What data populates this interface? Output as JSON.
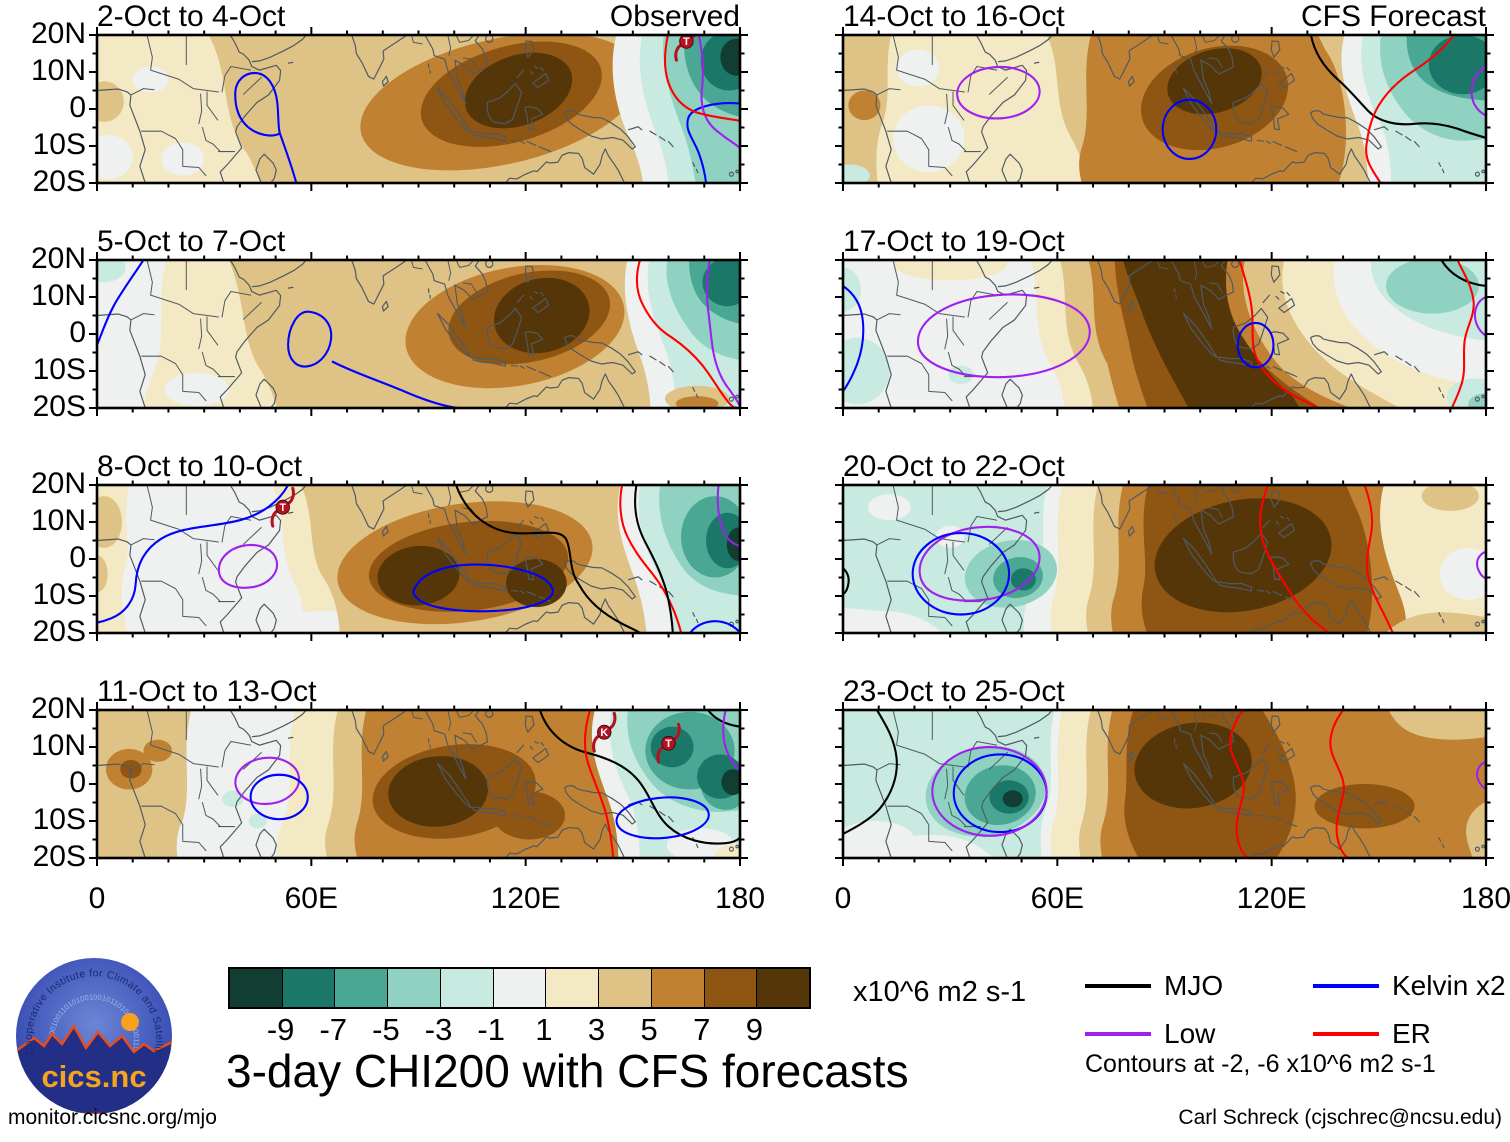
{
  "figure": {
    "title": "3-day CHI200 with CFS forecasts",
    "url": "monitor.cicsnc.org/mjo",
    "credit": "Carl Schreck (cjschrec@ncsu.edu)",
    "logo": {
      "org": "Cooperative Institute for Climate and Satellites",
      "name": "cics.nc",
      "binary_texture": "010100100110101001001011010010100110010"
    }
  },
  "columns": [
    {
      "heading": "Observed"
    },
    {
      "heading": "CFS Forecast"
    }
  ],
  "axes": {
    "x_ticks": [
      "0",
      "60E",
      "120E",
      "180"
    ],
    "y_ticks": [
      "20N",
      "10N",
      "0",
      "10S",
      "20S"
    ]
  },
  "colorbar": {
    "unit": "x10^6 m2 s-1",
    "labels": [
      "-9",
      "-7",
      "-5",
      "-3",
      "-1",
      "1",
      "3",
      "5",
      "7",
      "9"
    ],
    "colors": [
      "#123d33",
      "#1b7868",
      "#4aa794",
      "#8fd2c2",
      "#c8eae1",
      "#eef1ef",
      "#f4e9c5",
      "#dfc386",
      "#c08232",
      "#8f5512",
      "#553608"
    ]
  },
  "legend": {
    "items": [
      {
        "label": "MJO",
        "color": "#000000"
      },
      {
        "label": "Kelvin x2",
        "color": "#0000ff"
      },
      {
        "label": "Low",
        "color": "#a020f0"
      },
      {
        "label": "ER",
        "color": "#ff0000"
      }
    ],
    "note": "Contours at -2, -6 x10^6 m2 s-1"
  },
  "chart_data": {
    "type": "heatmap",
    "variable": "3-day mean 200 hPa velocity potential (CHI200) anomaly",
    "units": "x10^6 m2 s-1",
    "x": {
      "label": "longitude",
      "range": [
        0,
        180
      ],
      "tick_labels": [
        "0",
        "60E",
        "120E",
        "180"
      ],
      "minor_tick_deg": 10,
      "major_tick_deg": 60
    },
    "y": {
      "label": "latitude",
      "range": [
        -20,
        20
      ],
      "tick_labels": [
        "20S",
        "10S",
        "0",
        "10N",
        "20N"
      ],
      "minor_tick_deg": 5,
      "major_tick_deg": 10
    },
    "color_levels": [
      -9,
      -7,
      -5,
      -3,
      -1,
      1,
      3,
      5,
      7,
      9
    ],
    "contours_at": [
      -2,
      -6
    ],
    "contour_types": [
      "MJO",
      "Low",
      "Kelvin x2",
      "ER"
    ],
    "legend_position": "bottom-right",
    "panels": [
      {
        "title": "2-Oct to 4-Oct",
        "source": "Observed",
        "positive_center": {
          "lon": 118,
          "lat": 2
        },
        "negative_center": {
          "lon": 174,
          "lat": 12
        },
        "storms": [
          {
            "symbol": "T",
            "lon": 165,
            "lat": 18.3
          }
        ]
      },
      {
        "title": "5-Oct to 7-Oct",
        "source": "Observed",
        "positive_center": {
          "lon": 124,
          "lat": 5
        },
        "negative_center": {
          "lon": 176,
          "lat": 14
        },
        "storms": []
      },
      {
        "title": "8-Oct to 10-Oct",
        "source": "Observed",
        "positive_center": {
          "lon": 105,
          "lat": -3
        },
        "negative_center": {
          "lon": 175,
          "lat": 4
        },
        "storms": [
          {
            "symbol": "T",
            "lon": 52,
            "lat": 14
          }
        ]
      },
      {
        "title": "11-Oct to 13-Oct",
        "source": "Observed",
        "positive_center": {
          "lon": 95,
          "lat": -2
        },
        "negative_center": {
          "lon": 166,
          "lat": 9
        },
        "storms": [
          {
            "symbol": "K",
            "lon": 142,
            "lat": 14
          },
          {
            "symbol": "T",
            "lon": 160,
            "lat": 11
          }
        ]
      },
      {
        "title": "14-Oct to 16-Oct",
        "source": "CFS Forecast",
        "positive_center": {
          "lon": 104,
          "lat": 7
        },
        "negative_center": {
          "lon": 173,
          "lat": 12
        },
        "storms": []
      },
      {
        "title": "17-Oct to 19-Oct",
        "source": "CFS Forecast",
        "positive_center": {
          "lon": 92,
          "lat": 3
        },
        "negative_center": {
          "lon": 163,
          "lat": 13
        },
        "storms": []
      },
      {
        "title": "20-Oct to 22-Oct",
        "source": "CFS Forecast",
        "positive_center": {
          "lon": 112,
          "lat": 1
        },
        "negative_center": {
          "lon": 50,
          "lat": -5
        },
        "storms": []
      },
      {
        "title": "23-Oct to 25-Oct",
        "source": "CFS Forecast",
        "positive_center": {
          "lon": 98,
          "lat": 5
        },
        "negative_center": {
          "lon": 47,
          "lat": -4
        },
        "storms": []
      }
    ]
  }
}
